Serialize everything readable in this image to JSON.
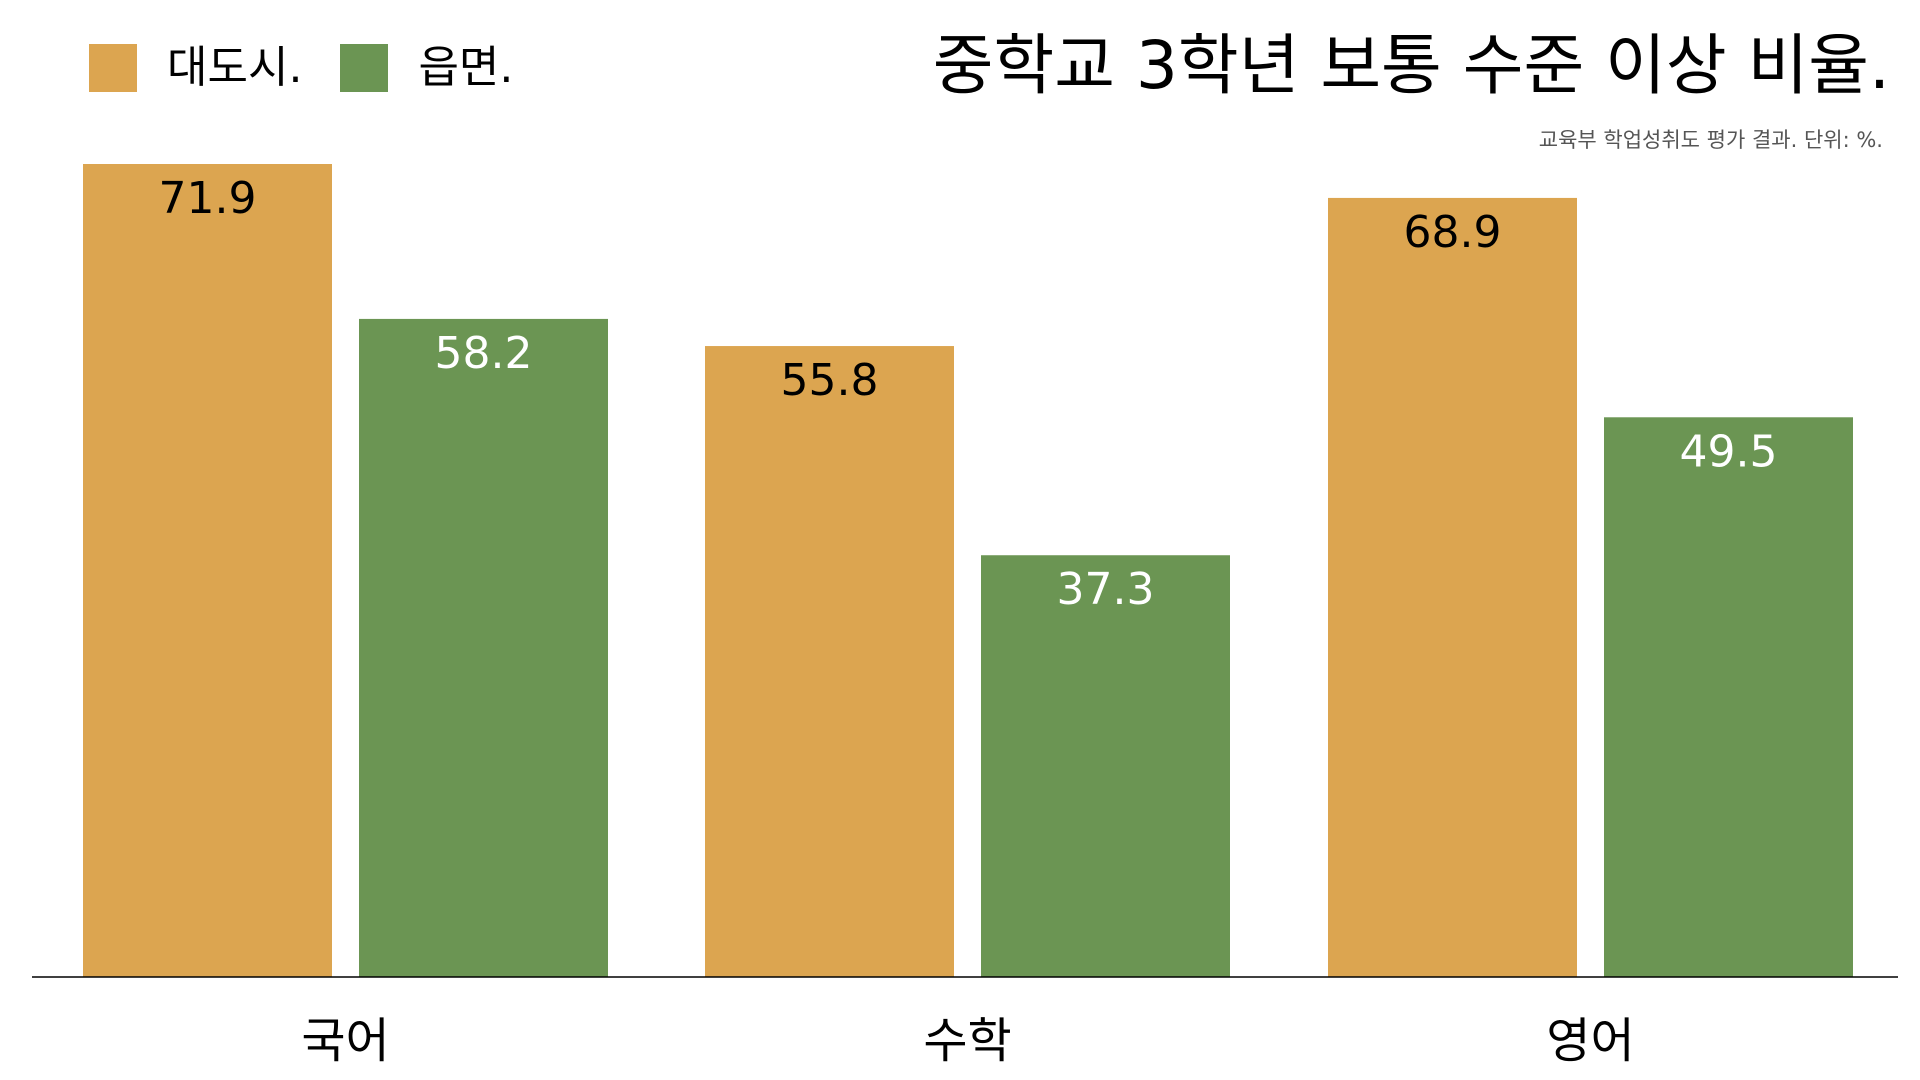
{
  "chart_data": {
    "type": "bar",
    "title": "중학교 3학년 보통 수준 이상 비율.",
    "subtitle": "교육부 학업성취도 평가 결과. 단위: %.",
    "categories": [
      "국어",
      "수학",
      "영어"
    ],
    "series": [
      {
        "name": "대도시.",
        "values": [
          71.9,
          55.8,
          68.9
        ],
        "color": "#dca550",
        "label_color": "#000000"
      },
      {
        "name": "읍면.",
        "values": [
          58.2,
          37.3,
          49.5
        ],
        "color": "#6b9553",
        "label_color": "#ffffff"
      }
    ],
    "ylim": [
      0,
      71.9
    ],
    "xlabel": "",
    "ylabel": "",
    "legend_position": "top-left",
    "grid": false
  }
}
